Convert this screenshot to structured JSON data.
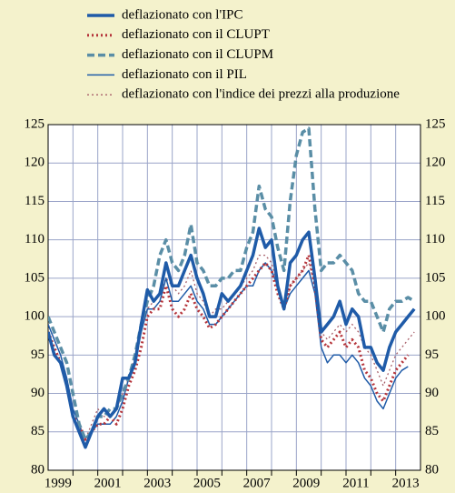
{
  "chart_data": {
    "type": "line",
    "x": [
      1999,
      1999.25,
      1999.5,
      1999.75,
      2000,
      2000.25,
      2000.5,
      2000.75,
      2001,
      2001.25,
      2001.5,
      2001.75,
      2002,
      2002.25,
      2002.5,
      2002.75,
      2003,
      2003.25,
      2003.5,
      2003.75,
      2004,
      2004.25,
      2004.5,
      2004.75,
      2005,
      2005.25,
      2005.5,
      2005.75,
      2006,
      2006.25,
      2006.5,
      2006.75,
      2007,
      2007.25,
      2007.5,
      2007.75,
      2008,
      2008.25,
      2008.5,
      2008.75,
      2009,
      2009.25,
      2009.5,
      2009.75,
      2010,
      2010.25,
      2010.5,
      2010.75,
      2011,
      2011.25,
      2011.5,
      2011.75,
      2012,
      2012.25,
      2012.5,
      2012.75,
      2013,
      2013.25,
      2013.5,
      2013.75
    ],
    "series": [
      {
        "name": "deflazionato con l'IPC",
        "color": "#1f5ba8",
        "style": "solid",
        "width": 3.5,
        "values": [
          98,
          95,
          94,
          91,
          87,
          85,
          83,
          85,
          87,
          88,
          87,
          88,
          92,
          92,
          94,
          99,
          103.5,
          102,
          103,
          107,
          104,
          104,
          106,
          108,
          105,
          103,
          100,
          100,
          103,
          102,
          103,
          104,
          106,
          108,
          111.5,
          109,
          110,
          104,
          101,
          107,
          108,
          110,
          111,
          105,
          98,
          99,
          100,
          102,
          99,
          101,
          100,
          96,
          96,
          94,
          93,
          96,
          98,
          99,
          100,
          101
        ]
      },
      {
        "name": "deflazionato con il CLUPT",
        "color": "#b5343a",
        "style": "dotted",
        "width": 3,
        "values": [
          98,
          96,
          94,
          91,
          87,
          86,
          84,
          85,
          86,
          86,
          87,
          86,
          88,
          91,
          93,
          96,
          100,
          101,
          101,
          104,
          101,
          100,
          101,
          103,
          101,
          100,
          98.5,
          99,
          100,
          101,
          102,
          103,
          104,
          105,
          106,
          107,
          106,
          103,
          101,
          104,
          105,
          106,
          108,
          104,
          97,
          96,
          97,
          98,
          96,
          97,
          96,
          93,
          92,
          90,
          89,
          91,
          93,
          94,
          95,
          null
        ]
      },
      {
        "name": "deflazionato con il CLUPM",
        "color": "#5a8ea6",
        "style": "dashed",
        "width": 3.5,
        "values": [
          100,
          98,
          96,
          94,
          90,
          86,
          84,
          85,
          87,
          87,
          88,
          88,
          90,
          92,
          95,
          99,
          102,
          104,
          108,
          110,
          107,
          106,
          108,
          112,
          107,
          106,
          104,
          104,
          105,
          105,
          106,
          106,
          109,
          111,
          117,
          114,
          113,
          109,
          106,
          115,
          121,
          124,
          124.5,
          114,
          106,
          107,
          107,
          108,
          107,
          106,
          103,
          102,
          102,
          100,
          98,
          101,
          102,
          102,
          102.5,
          102
        ]
      },
      {
        "name": "deflazionato con il PIL",
        "color": "#1f5ba8",
        "style": "solid",
        "width": 1.5,
        "values": [
          99,
          97,
          95,
          92,
          88,
          86,
          83,
          85,
          86,
          86,
          86,
          87,
          89,
          92,
          94,
          98,
          101,
          101,
          102,
          105,
          102,
          102,
          103,
          104,
          102,
          101,
          99,
          99,
          100,
          101,
          102,
          103,
          104,
          104,
          106,
          107,
          106,
          104,
          101,
          103,
          104,
          105,
          106,
          103,
          96,
          94,
          95,
          95,
          94,
          95,
          94,
          92,
          91,
          89,
          88,
          90,
          92,
          93,
          93.5,
          null
        ]
      },
      {
        "name": "deflazionato con l'indice dei prezzi alla produzione",
        "color": "#a8606a",
        "style": "dotted",
        "width": 1.3,
        "values": [
          99,
          97,
          95,
          92,
          88,
          86,
          84,
          86,
          88,
          87,
          87,
          88,
          90,
          92,
          95,
          99,
          101,
          102,
          103,
          105,
          104,
          103,
          104,
          106,
          103,
          102,
          100,
          101,
          101,
          102,
          103,
          104,
          105,
          106,
          108,
          108,
          107,
          104,
          101,
          104,
          105,
          106,
          107,
          104,
          98,
          97,
          98,
          99,
          98,
          99,
          98,
          96,
          95,
          93,
          91,
          93,
          95,
          96,
          97,
          98
        ]
      }
    ],
    "xlim": [
      1999,
      2014
    ],
    "xticks": [
      1999,
      2001,
      2003,
      2005,
      2007,
      2009,
      2011,
      2013
    ],
    "xgrid": [
      2000,
      2001,
      2002,
      2003,
      2004,
      2005,
      2006,
      2007,
      2008,
      2009,
      2010,
      2011,
      2012,
      2013
    ],
    "ylim": [
      80,
      125
    ],
    "yticks": [
      80,
      85,
      90,
      95,
      100,
      105,
      110,
      115,
      120,
      125
    ],
    "grid": true
  }
}
